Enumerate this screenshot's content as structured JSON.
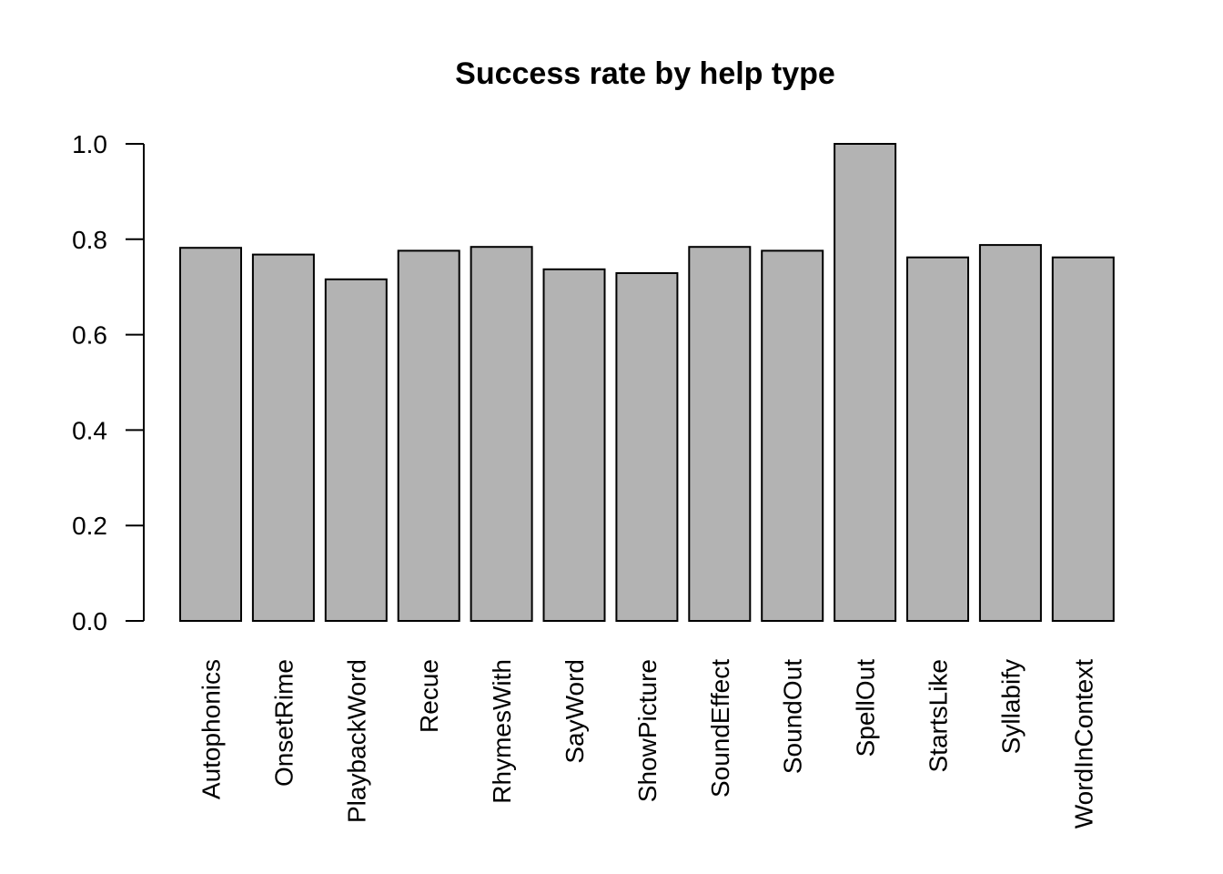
{
  "chart_data": {
    "type": "bar",
    "title": "Success rate by help type",
    "xlabel": "",
    "ylabel": "",
    "categories": [
      "Autophonics",
      "OnsetRime",
      "PlaybackWord",
      "Recue",
      "RhymesWith",
      "SayWord",
      "ShowPicture",
      "SoundEffect",
      "SoundOut",
      "SpellOut",
      "StartsLike",
      "Syllabify",
      "WordInContext"
    ],
    "values": [
      0.782,
      0.768,
      0.716,
      0.776,
      0.784,
      0.737,
      0.729,
      0.784,
      0.776,
      1.0,
      0.762,
      0.788,
      0.762
    ],
    "ylim": [
      0,
      1.0
    ],
    "yticks": [
      "0.0",
      "0.2",
      "0.4",
      "0.6",
      "0.8",
      "1.0"
    ],
    "ytick_values": [
      0,
      0.2,
      0.4,
      0.6,
      0.8,
      1.0
    ],
    "bar_color": "#b3b3b3",
    "grid": false,
    "legend": "none"
  }
}
